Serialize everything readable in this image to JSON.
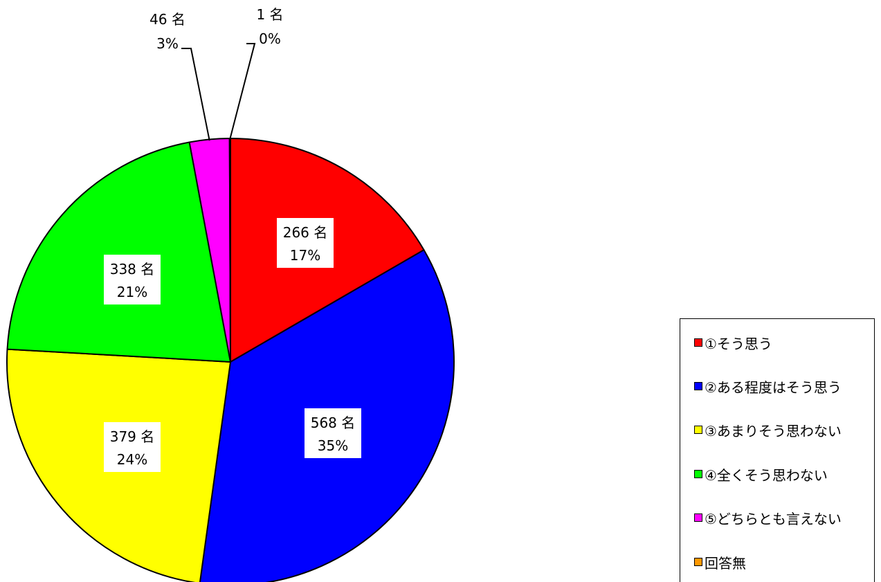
{
  "chart_data": {
    "type": "pie",
    "title": "",
    "unit": "名",
    "start_angle_deg": 0,
    "direction": "clockwise",
    "slices": [
      {
        "label": "①そう思う",
        "value": 266,
        "percent": "17%",
        "color": "#ff0000"
      },
      {
        "label": "②ある程度はそう思う",
        "value": 568,
        "percent": "35%",
        "color": "#0000ff"
      },
      {
        "label": "③あまりそう思わない",
        "value": 379,
        "percent": "24%",
        "color": "#ffff00"
      },
      {
        "label": "④全くそう思わない",
        "value": 338,
        "percent": "21%",
        "color": "#00ff00"
      },
      {
        "label": "⑤どちらとも言えない",
        "value": 46,
        "percent": "3%",
        "color": "#ff00ff"
      },
      {
        "label": "回答無",
        "value": 1,
        "percent": "0%",
        "color": "#ff9900"
      }
    ],
    "legend": {
      "placement": "right",
      "items": [
        "①そう思う",
        "②ある程度はそう思う",
        "③あまりそう思わない",
        "④全くそう思わない",
        "⑤どちらとも言えない",
        "回答無"
      ]
    },
    "data_labels": [
      {
        "count": "266 名",
        "percent": "17%"
      },
      {
        "count": "568 名",
        "percent": "35%"
      },
      {
        "count": "379 名",
        "percent": "24%"
      },
      {
        "count": "338 名",
        "percent": "21%"
      },
      {
        "count": "46 名",
        "percent": "3%"
      },
      {
        "count": "1 名",
        "percent": "0%"
      }
    ]
  }
}
